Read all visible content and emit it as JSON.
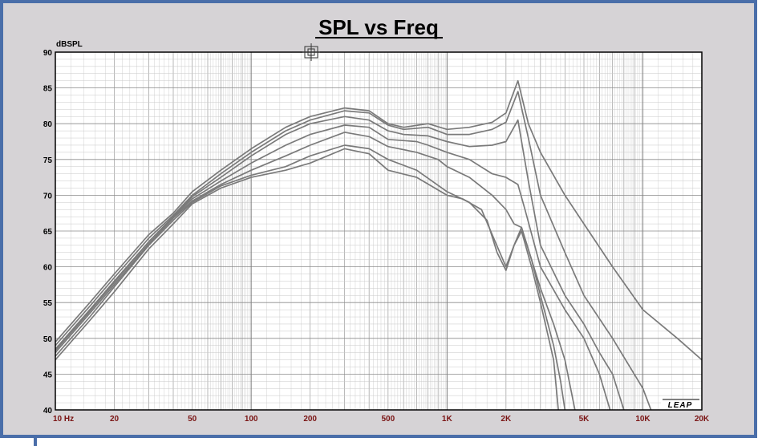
{
  "chart_data": {
    "type": "line",
    "title": "SPL vs Freq",
    "ylabel": "dBSPL",
    "xlabel": "",
    "x_scale": "log",
    "xlim": [
      10,
      20000
    ],
    "ylim": [
      40,
      90
    ],
    "grid": true,
    "logo": "LEAP",
    "yticks": [
      40,
      45,
      50,
      55,
      60,
      65,
      70,
      75,
      80,
      85,
      90
    ],
    "xticks": [
      {
        "value": 10,
        "label": "10 Hz"
      },
      {
        "value": 20,
        "label": "20"
      },
      {
        "value": 50,
        "label": "50"
      },
      {
        "value": 100,
        "label": "100"
      },
      {
        "value": 200,
        "label": "200"
      },
      {
        "value": 500,
        "label": "500"
      },
      {
        "value": 1000,
        "label": "1K"
      },
      {
        "value": 2000,
        "label": "2K"
      },
      {
        "value": 5000,
        "label": "5K"
      },
      {
        "value": 10000,
        "label": "10K"
      },
      {
        "value": 20000,
        "label": "20K"
      }
    ],
    "series": [
      {
        "points": [
          [
            10,
            49.5
          ],
          [
            15,
            55
          ],
          [
            20,
            59
          ],
          [
            30,
            64.5
          ],
          [
            40,
            67.5
          ],
          [
            50,
            70.5
          ],
          [
            70,
            73.5
          ],
          [
            100,
            76.5
          ],
          [
            150,
            79.5
          ],
          [
            200,
            81
          ],
          [
            300,
            82.2
          ],
          [
            400,
            81.8
          ],
          [
            500,
            80
          ],
          [
            600,
            79.5
          ],
          [
            800,
            80
          ],
          [
            1000,
            79.2
          ],
          [
            1300,
            79.5
          ],
          [
            1700,
            80.2
          ],
          [
            2000,
            81.5
          ],
          [
            2300,
            86
          ],
          [
            2600,
            80
          ],
          [
            3000,
            76
          ],
          [
            4000,
            70
          ],
          [
            5000,
            66
          ],
          [
            7000,
            60
          ],
          [
            10000,
            54
          ],
          [
            15000,
            50
          ],
          [
            20000,
            47
          ]
        ]
      },
      {
        "points": [
          [
            10,
            49
          ],
          [
            15,
            54.5
          ],
          [
            20,
            58.5
          ],
          [
            30,
            64
          ],
          [
            40,
            67.2
          ],
          [
            50,
            70
          ],
          [
            70,
            73
          ],
          [
            100,
            76
          ],
          [
            150,
            79
          ],
          [
            200,
            80.5
          ],
          [
            300,
            81.8
          ],
          [
            400,
            81.5
          ],
          [
            500,
            79.8
          ],
          [
            600,
            79.2
          ],
          [
            800,
            79.5
          ],
          [
            1000,
            78.5
          ],
          [
            1300,
            78.5
          ],
          [
            1700,
            79.2
          ],
          [
            2000,
            80.2
          ],
          [
            2300,
            84.5
          ],
          [
            2600,
            78
          ],
          [
            3000,
            70
          ],
          [
            4000,
            62
          ],
          [
            5000,
            56
          ],
          [
            7000,
            50
          ],
          [
            10000,
            43
          ],
          [
            11000,
            40
          ]
        ]
      },
      {
        "points": [
          [
            10,
            48.5
          ],
          [
            15,
            54
          ],
          [
            20,
            58
          ],
          [
            30,
            63.5
          ],
          [
            40,
            67
          ],
          [
            50,
            69.8
          ],
          [
            70,
            72.5
          ],
          [
            100,
            75.5
          ],
          [
            150,
            78.5
          ],
          [
            200,
            80
          ],
          [
            300,
            81
          ],
          [
            400,
            80.5
          ],
          [
            500,
            79
          ],
          [
            600,
            78.5
          ],
          [
            800,
            78.3
          ],
          [
            1000,
            77.5
          ],
          [
            1300,
            76.8
          ],
          [
            1700,
            77
          ],
          [
            2000,
            77.5
          ],
          [
            2300,
            80.5
          ],
          [
            2600,
            72
          ],
          [
            3000,
            63
          ],
          [
            4000,
            56
          ],
          [
            5000,
            52
          ],
          [
            6000,
            48
          ],
          [
            7000,
            45
          ],
          [
            8000,
            40
          ]
        ]
      },
      {
        "points": [
          [
            10,
            48.3
          ],
          [
            15,
            53.8
          ],
          [
            20,
            57.8
          ],
          [
            30,
            63.5
          ],
          [
            40,
            67
          ],
          [
            50,
            69.5
          ],
          [
            70,
            72
          ],
          [
            100,
            74.5
          ],
          [
            150,
            77
          ],
          [
            200,
            78.5
          ],
          [
            300,
            79.8
          ],
          [
            400,
            79.5
          ],
          [
            500,
            77.8
          ],
          [
            700,
            77.5
          ],
          [
            800,
            77
          ],
          [
            1000,
            76
          ],
          [
            1300,
            75
          ],
          [
            1700,
            73
          ],
          [
            2000,
            72.5
          ],
          [
            2300,
            71.5
          ],
          [
            2500,
            68
          ],
          [
            3000,
            60
          ],
          [
            4000,
            54
          ],
          [
            5000,
            50
          ],
          [
            6000,
            45
          ],
          [
            6800,
            40
          ]
        ]
      },
      {
        "points": [
          [
            10,
            48
          ],
          [
            15,
            53.5
          ],
          [
            20,
            57.5
          ],
          [
            30,
            63.2
          ],
          [
            40,
            66.8
          ],
          [
            50,
            69.2
          ],
          [
            70,
            71.5
          ],
          [
            100,
            73.5
          ],
          [
            150,
            75.5
          ],
          [
            200,
            77
          ],
          [
            300,
            78.8
          ],
          [
            400,
            78.2
          ],
          [
            500,
            76.8
          ],
          [
            700,
            76
          ],
          [
            900,
            75
          ],
          [
            1000,
            74
          ],
          [
            1300,
            72.5
          ],
          [
            1700,
            70
          ],
          [
            2000,
            68
          ],
          [
            2200,
            66
          ],
          [
            2400,
            65.5
          ],
          [
            2700,
            61
          ],
          [
            3000,
            57
          ],
          [
            3500,
            52
          ],
          [
            4000,
            47
          ],
          [
            4500,
            40
          ]
        ]
      },
      {
        "points": [
          [
            10,
            47.5
          ],
          [
            15,
            53
          ],
          [
            20,
            57.2
          ],
          [
            30,
            63
          ],
          [
            40,
            66.5
          ],
          [
            50,
            69
          ],
          [
            70,
            71.3
          ],
          [
            100,
            72.8
          ],
          [
            150,
            74
          ],
          [
            200,
            75.5
          ],
          [
            300,
            77
          ],
          [
            400,
            76.5
          ],
          [
            500,
            75
          ],
          [
            700,
            73.5
          ],
          [
            1000,
            70.5
          ],
          [
            1300,
            69
          ],
          [
            1600,
            66.5
          ],
          [
            1800,
            62
          ],
          [
            2000,
            59.5
          ],
          [
            2200,
            63
          ],
          [
            2400,
            65.5
          ],
          [
            2700,
            61
          ],
          [
            3000,
            56
          ],
          [
            3500,
            49
          ],
          [
            3800,
            44
          ],
          [
            4000,
            40
          ]
        ]
      },
      {
        "points": [
          [
            10,
            47
          ],
          [
            15,
            52.5
          ],
          [
            20,
            56.5
          ],
          [
            30,
            62.5
          ],
          [
            40,
            66
          ],
          [
            50,
            68.8
          ],
          [
            70,
            71
          ],
          [
            100,
            72.5
          ],
          [
            150,
            73.5
          ],
          [
            200,
            74.5
          ],
          [
            300,
            76.5
          ],
          [
            400,
            75.8
          ],
          [
            500,
            73.5
          ],
          [
            700,
            72.5
          ],
          [
            1000,
            70
          ],
          [
            1200,
            69.5
          ],
          [
            1500,
            68
          ],
          [
            1700,
            64.5
          ],
          [
            2000,
            60
          ],
          [
            2200,
            63
          ],
          [
            2400,
            65
          ],
          [
            2700,
            60
          ],
          [
            3000,
            55
          ],
          [
            3500,
            47
          ],
          [
            3700,
            40
          ]
        ]
      }
    ]
  }
}
